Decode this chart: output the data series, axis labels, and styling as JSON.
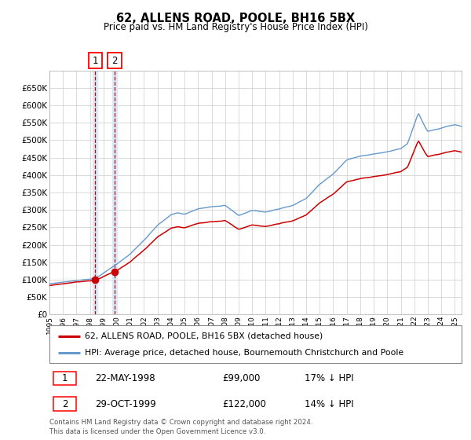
{
  "title": "62, ALLENS ROAD, POOLE, BH16 5BX",
  "subtitle": "Price paid vs. HM Land Registry's House Price Index (HPI)",
  "legend_line1": "62, ALLENS ROAD, POOLE, BH16 5BX (detached house)",
  "legend_line2": "HPI: Average price, detached house, Bournemouth Christchurch and Poole",
  "transaction1_date": "22-MAY-1998",
  "transaction1_price": 99000,
  "transaction1_pct": "17% ↓ HPI",
  "transaction2_date": "29-OCT-1999",
  "transaction2_price": 122000,
  "transaction2_pct": "14% ↓ HPI",
  "footnote": "Contains HM Land Registry data © Crown copyright and database right 2024.\nThis data is licensed under the Open Government Licence v3.0.",
  "hpi_color": "#6699cc",
  "price_color": "#cc0000",
  "marker_color": "#cc0000",
  "vline_color": "#cc0000",
  "highlight_color": "#d8eaf7",
  "grid_color": "#cccccc",
  "bg_color": "#ffffff",
  "ylim": [
    0,
    700000
  ],
  "ytick_vals": [
    0,
    50000,
    100000,
    150000,
    200000,
    250000,
    300000,
    350000,
    400000,
    450000,
    500000,
    550000,
    600000,
    650000
  ],
  "transaction1_x": 1998.38,
  "transaction2_x": 1999.83,
  "xmin": 1995.0,
  "xmax": 2025.5
}
